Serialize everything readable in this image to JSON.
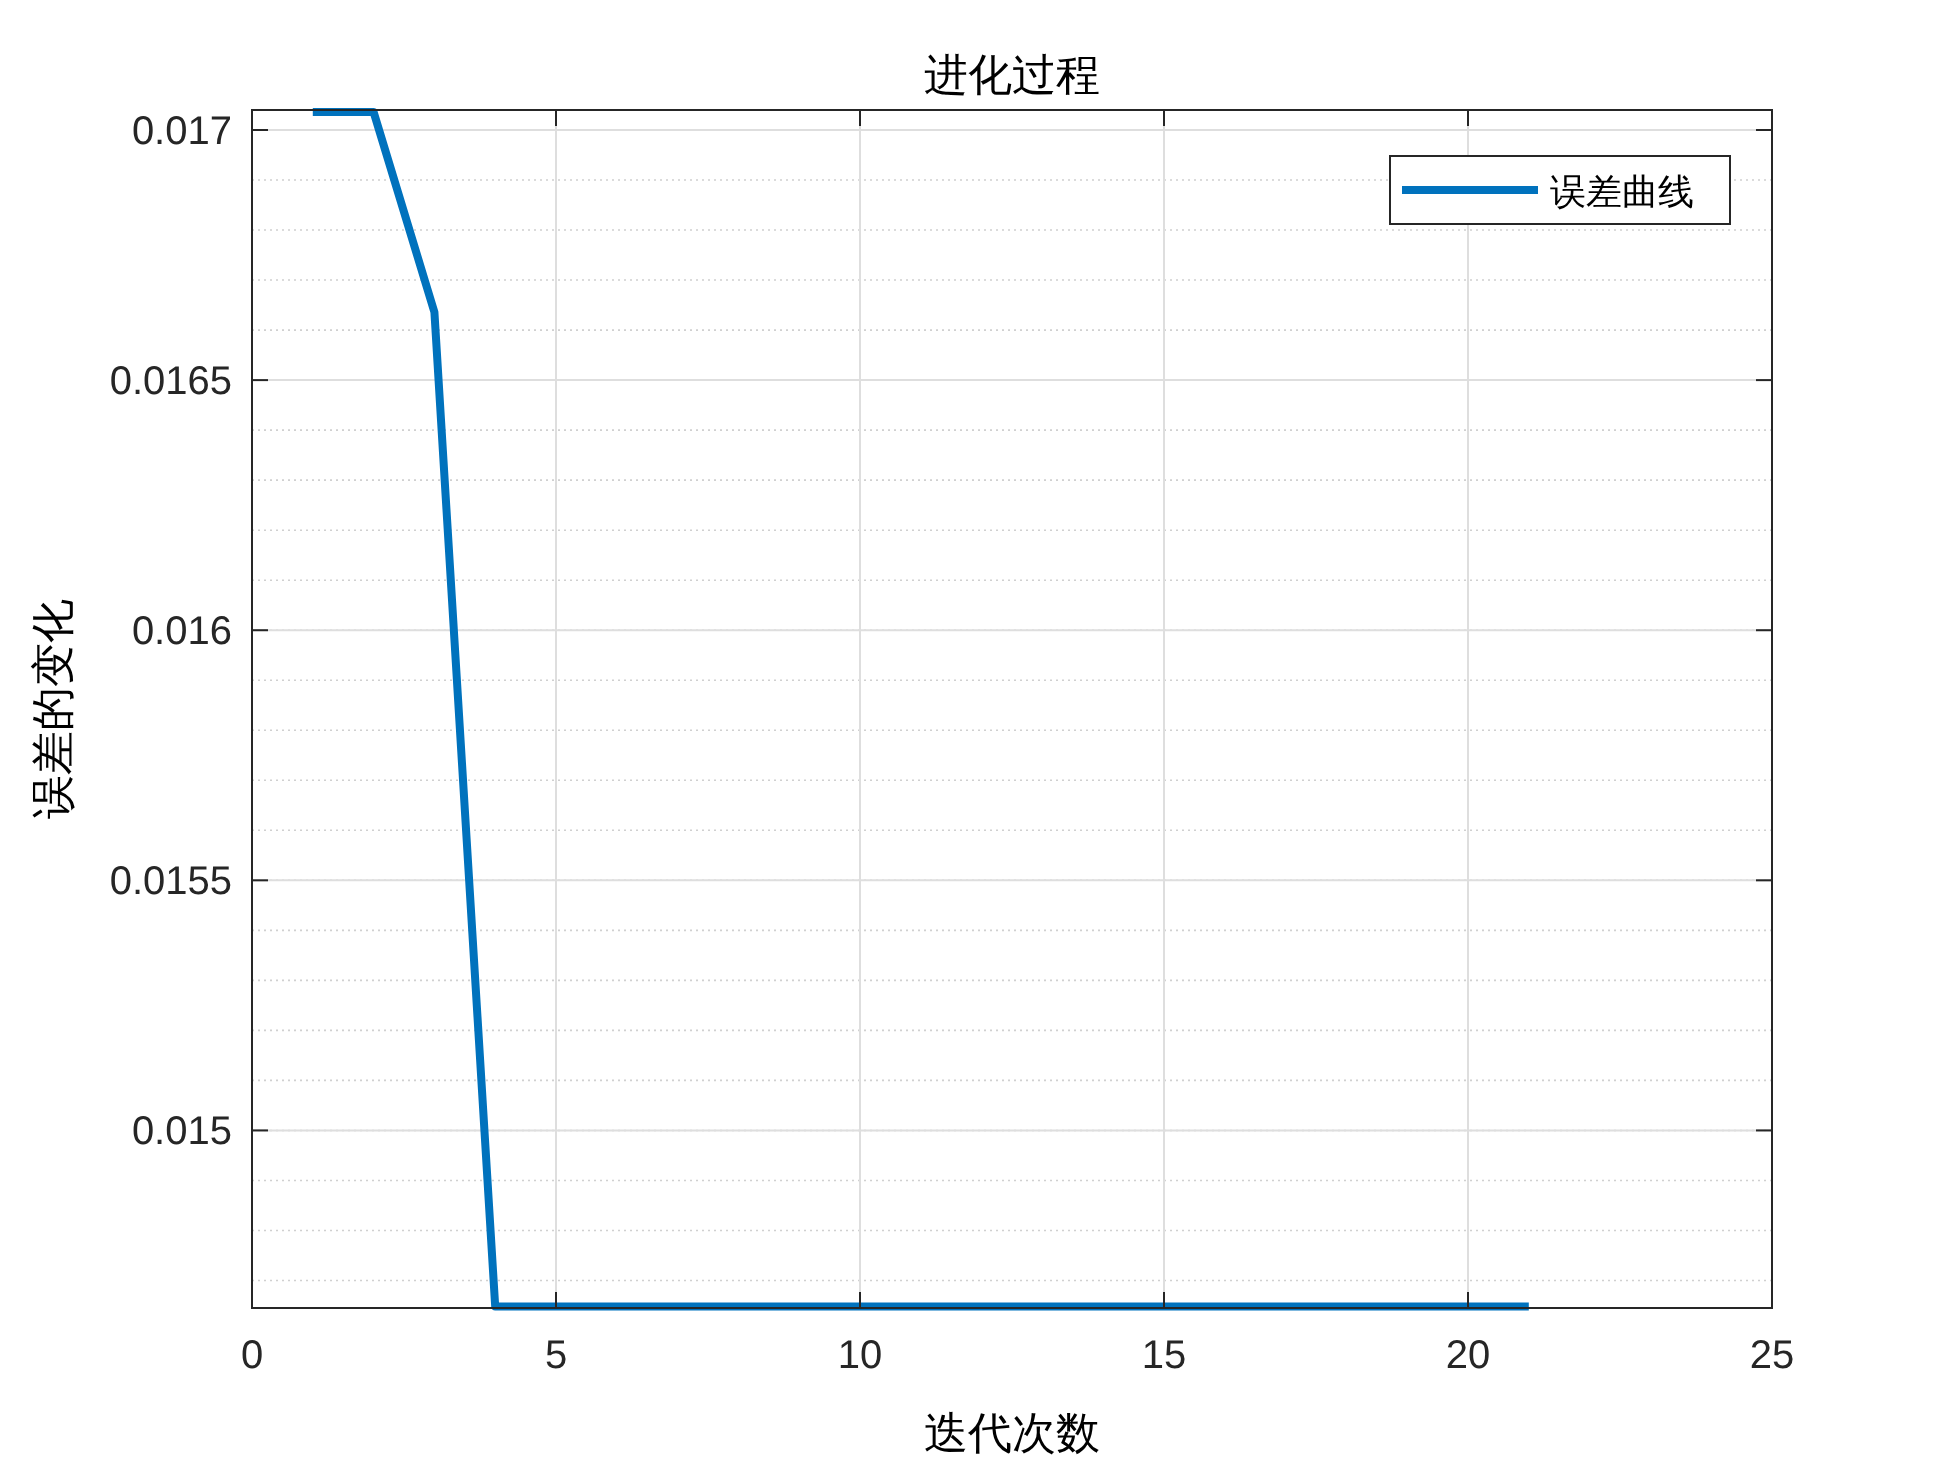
{
  "chart_data": {
    "type": "line",
    "title": "进化过程",
    "xlabel": "迭代次数",
    "ylabel": "误差的变化",
    "x": [
      1,
      2,
      3,
      4,
      5,
      6,
      7,
      8,
      9,
      10,
      11,
      12,
      13,
      14,
      15,
      16,
      17,
      18,
      19,
      20,
      21
    ],
    "series": [
      {
        "name": "误差曲线",
        "color": "#0072bd",
        "values": [
          0.017036,
          0.017036,
          0.016636,
          0.014648,
          0.014648,
          0.014648,
          0.014648,
          0.014648,
          0.014648,
          0.014648,
          0.014648,
          0.014648,
          0.014648,
          0.014648,
          0.014648,
          0.014648,
          0.014648,
          0.014648,
          0.014648,
          0.014648,
          0.014648
        ]
      }
    ],
    "xlim": [
      0,
      25
    ],
    "ylim": [
      0.014645,
      0.01704
    ],
    "xticks": [
      0,
      5,
      10,
      15,
      20,
      25
    ],
    "yticks": [
      0.015,
      0.0155,
      0.016,
      0.0165,
      0.017
    ],
    "grid": true,
    "legend": "top right",
    "line_style": "solid",
    "marker": "none"
  }
}
